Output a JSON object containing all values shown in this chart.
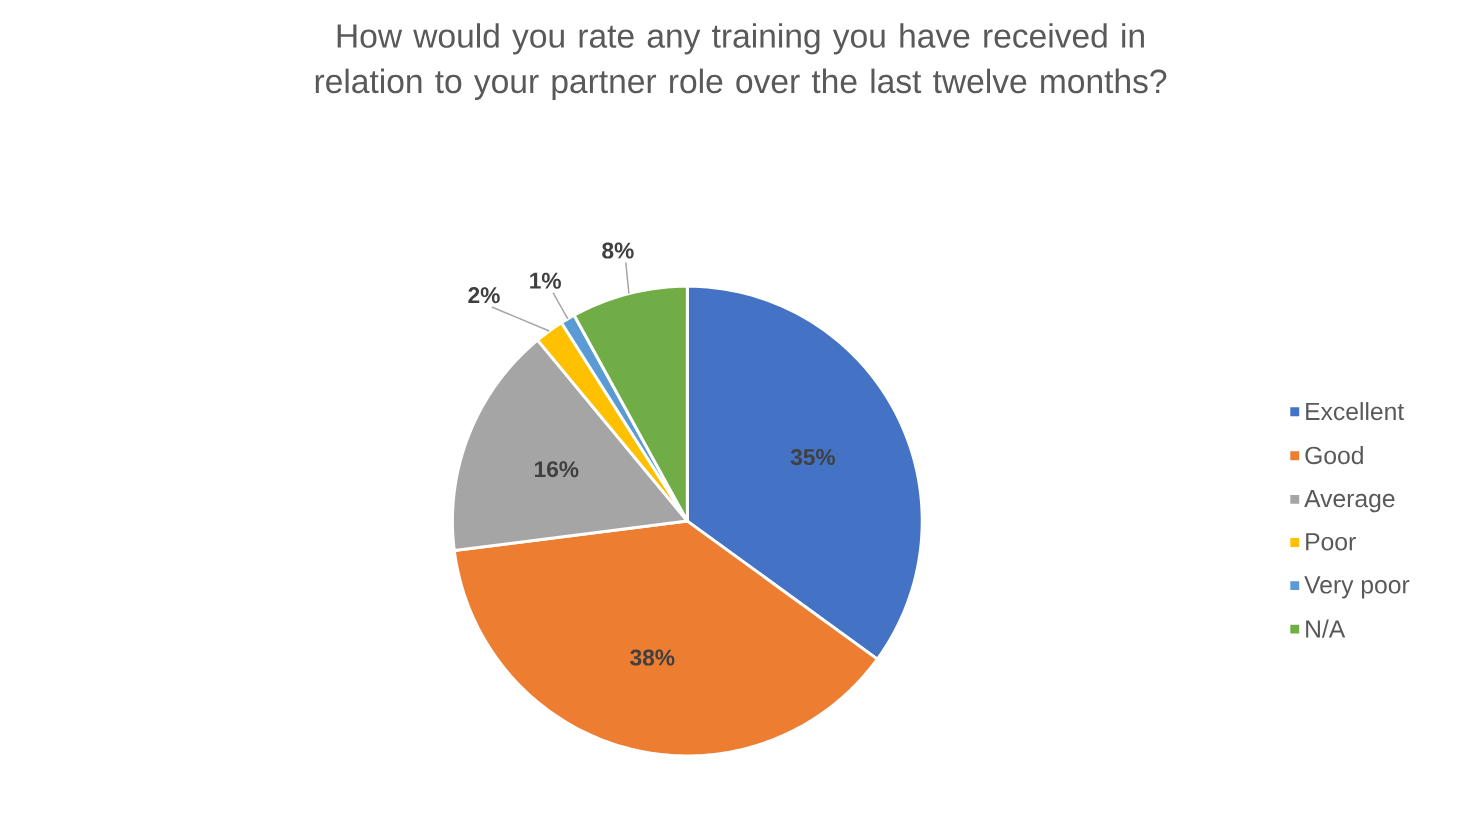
{
  "chart_data": {
    "type": "pie",
    "title": "How would you rate any training you have received in relation to your partner role over the last twelve months?",
    "categories": [
      "Excellent",
      "Good",
      "Average",
      "Poor",
      "Very poor",
      "N/A"
    ],
    "values": [
      35,
      38,
      16,
      2,
      1,
      8
    ],
    "value_labels": [
      "35%",
      "38%",
      "16%",
      "2%",
      "1%",
      "8%"
    ],
    "colors": [
      "#4472c4",
      "#ed7d31",
      "#a5a5a5",
      "#ffc000",
      "#5b9bd5",
      "#70ad47"
    ],
    "legend": "right"
  }
}
